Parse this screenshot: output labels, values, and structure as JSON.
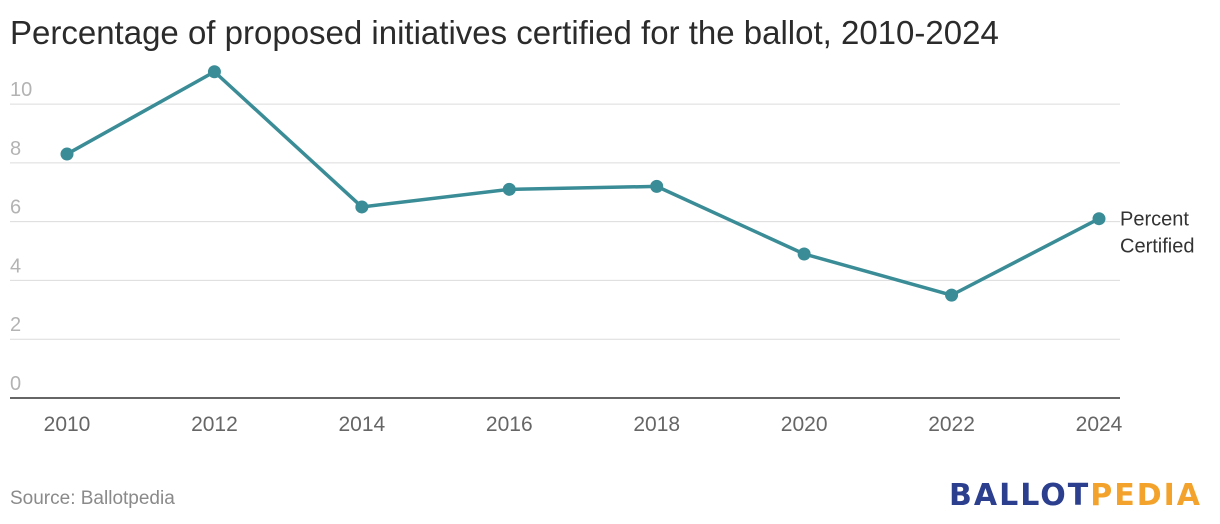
{
  "title": "Percentage of proposed initiatives certified for the ballot, 2010-2024",
  "source": "Source: Ballotpedia",
  "logo": {
    "part1": "BALLOT",
    "part2": "PEDIA",
    "colors": {
      "part1": "#2c3f8f",
      "part2": "#f3a32b"
    }
  },
  "chart_data": {
    "type": "line",
    "title": "Percentage of proposed initiatives certified for the ballot, 2010-2024",
    "xlabel": "",
    "ylabel": "",
    "x": [
      2010,
      2012,
      2014,
      2016,
      2018,
      2020,
      2022,
      2024
    ],
    "series": [
      {
        "name": "Percent Certified",
        "name_lines": [
          "Percent",
          "Certified"
        ],
        "values": [
          8.3,
          11.1,
          6.5,
          7.1,
          7.2,
          4.9,
          3.5,
          6.1
        ],
        "color": "#3a8c96"
      }
    ],
    "ylim": [
      0,
      11.5
    ],
    "yticks": [
      0,
      2,
      4,
      6,
      8,
      10
    ],
    "xticks": [
      2010,
      2012,
      2014,
      2016,
      2018,
      2020,
      2022,
      2024
    ],
    "grid": true,
    "legend": "end-of-line label"
  }
}
